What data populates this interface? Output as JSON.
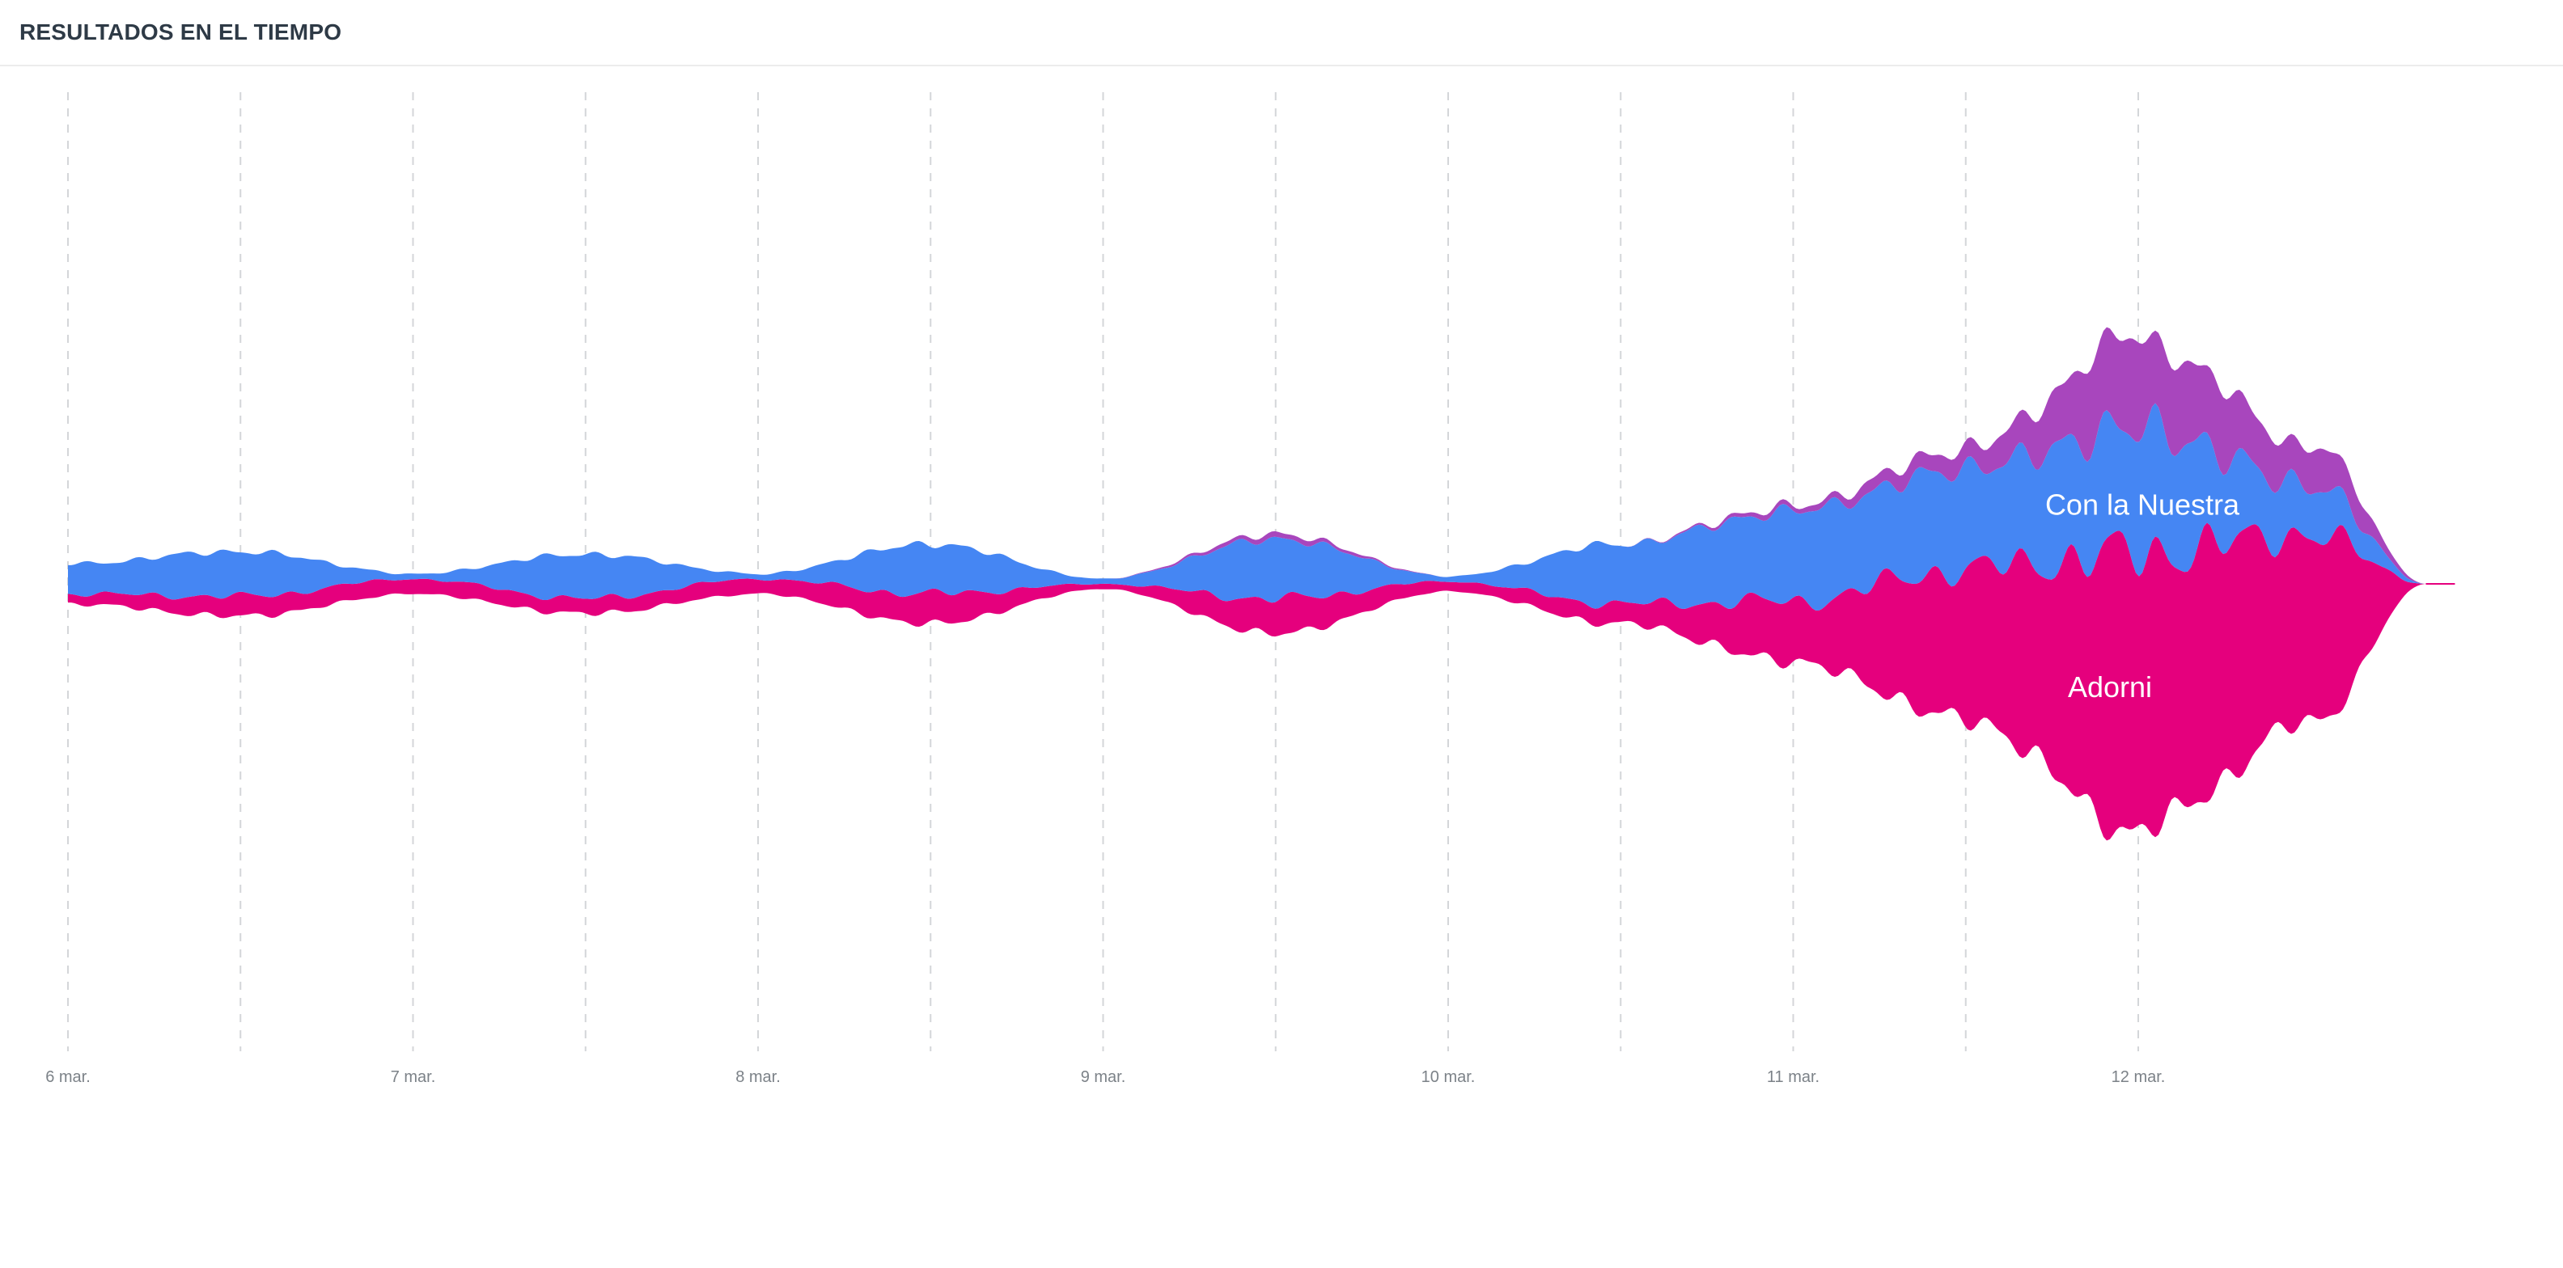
{
  "header": {
    "title": "RESULTADOS EN EL TIEMPO"
  },
  "chart_data": {
    "type": "area",
    "layout": "streamgraph",
    "title": "RESULTADOS EN EL TIEMPO",
    "x_ticks": [
      "6 mar.",
      "7 mar.",
      "8 mar.",
      "9 mar.",
      "10 mar.",
      "11 mar.",
      "12 mar."
    ],
    "grid": "dashed vertical lines every half day",
    "x": [
      "6 mar. 00:00",
      "6 mar. 12:00",
      "7 mar. 00:00",
      "7 mar. 12:00",
      "8 mar. 00:00",
      "8 mar. 12:00",
      "9 mar. 00:00",
      "9 mar. 12:00",
      "10 mar. 00:00",
      "10 mar. 12:00",
      "11 mar. 00:00",
      "11 mar. 12:00",
      "12 mar. 00:00",
      "12 mar. 12:00",
      "12 mar. 20:00"
    ],
    "series": [
      {
        "name": "Adorni",
        "color": "#e5007d",
        "values": [
          2,
          4,
          3,
          3,
          3,
          6,
          1,
          7,
          2,
          4,
          12,
          30,
          55,
          38,
          0
        ]
      },
      {
        "name": "Con la Nuestra",
        "color": "#4586f3",
        "values": [
          6,
          9,
          1,
          9,
          1,
          10,
          1,
          12,
          1,
          12,
          18,
          20,
          25,
          10,
          0
        ]
      },
      {
        "name": "",
        "color": "#a846bd",
        "values": [
          0,
          0,
          0,
          0,
          0,
          0,
          0,
          1,
          0,
          0,
          1,
          4,
          18,
          8,
          0
        ]
      }
    ]
  }
}
